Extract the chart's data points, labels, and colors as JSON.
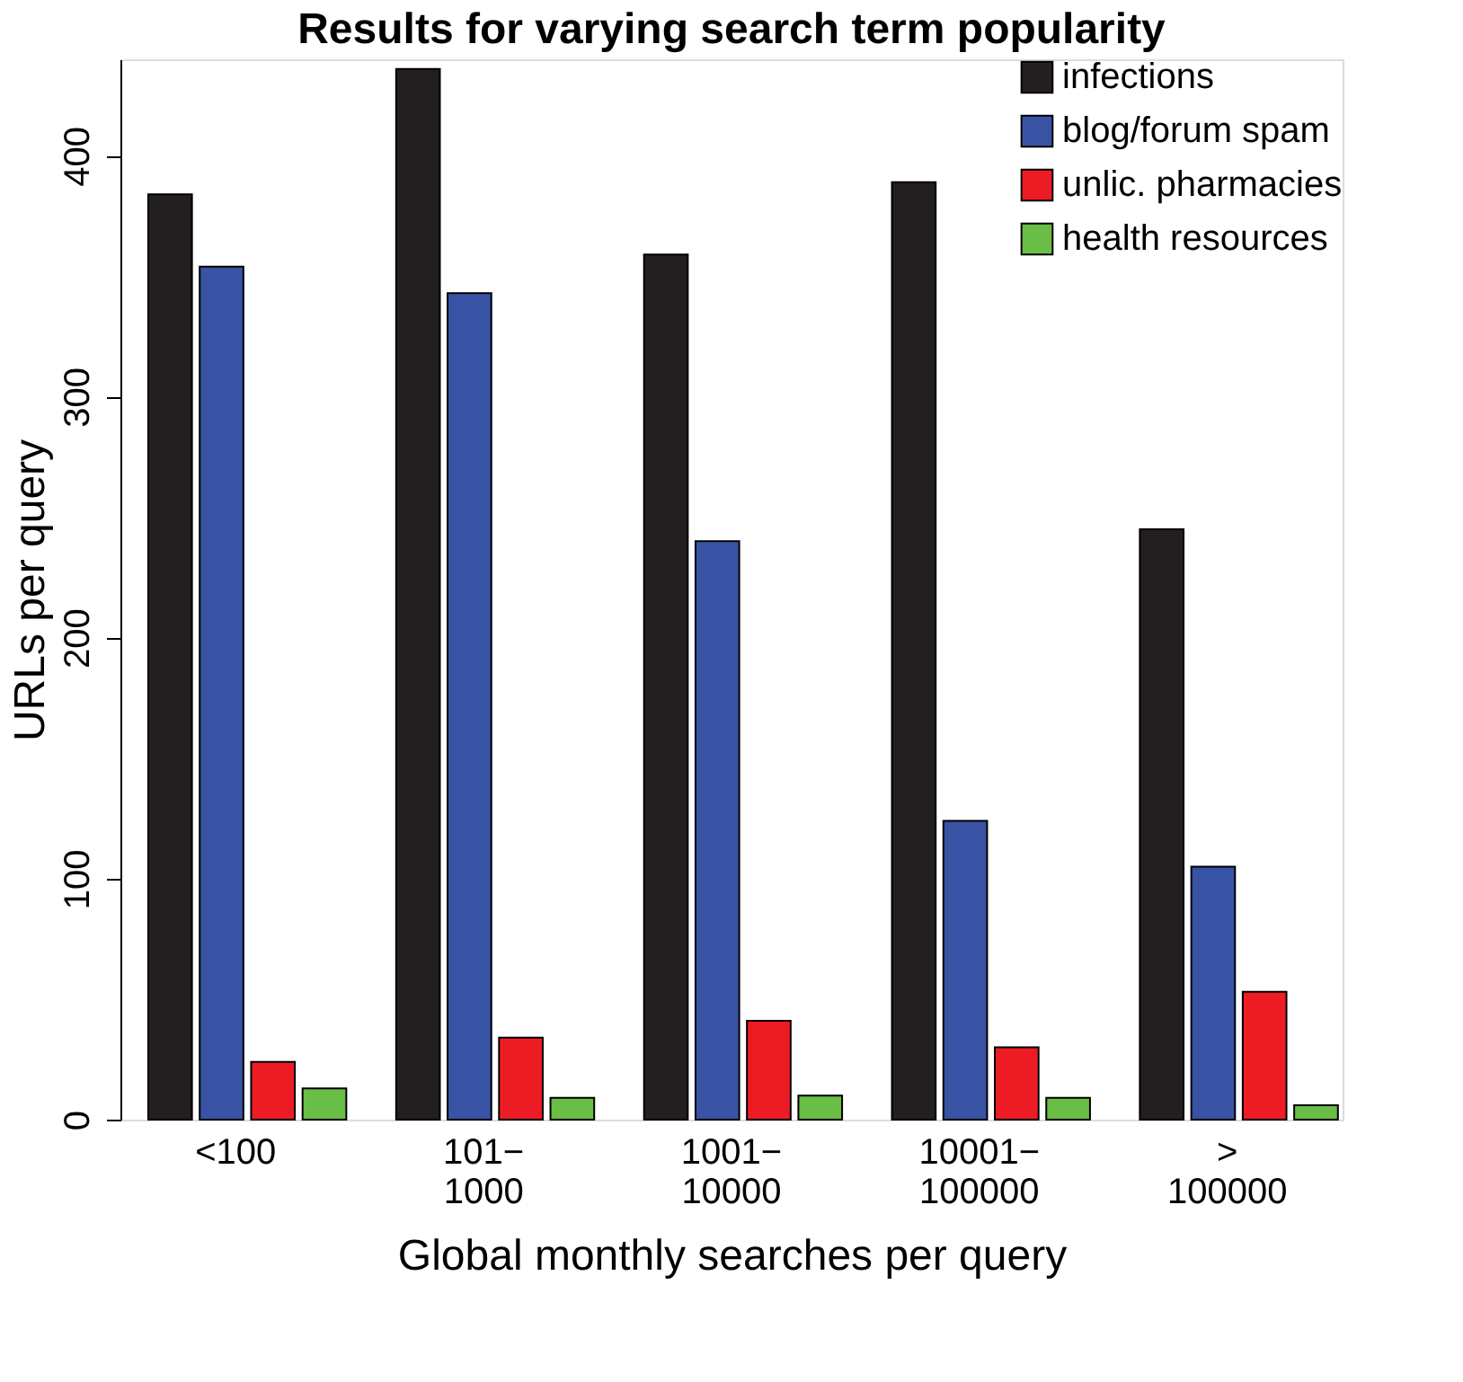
{
  "chart_data": {
    "type": "bar",
    "title": "Results for varying search term popularity",
    "xlabel": "Global monthly searches per query",
    "ylabel": "URLs per query",
    "categories": [
      "<100",
      "101−\n1000",
      "1001−\n10000",
      "10001−\n100000",
      ">\n100000"
    ],
    "series": [
      {
        "name": "infections",
        "color": "#231f20",
        "values": [
          384,
          436,
          359,
          389,
          245
        ]
      },
      {
        "name": "blog/forum spam",
        "color": "#3953a4",
        "values": [
          354,
          343,
          240,
          124,
          105
        ]
      },
      {
        "name": "unlic. pharmacies",
        "color": "#ed1c24",
        "values": [
          24,
          34,
          41,
          30,
          53
        ]
      },
      {
        "name": "health resources",
        "color": "#6abd45",
        "values": [
          13,
          9,
          10,
          9,
          6
        ]
      }
    ],
    "ylim": [
      0,
      440
    ],
    "yticks": [
      0,
      100,
      200,
      300,
      400
    ],
    "grid": false,
    "legend": "top right"
  }
}
